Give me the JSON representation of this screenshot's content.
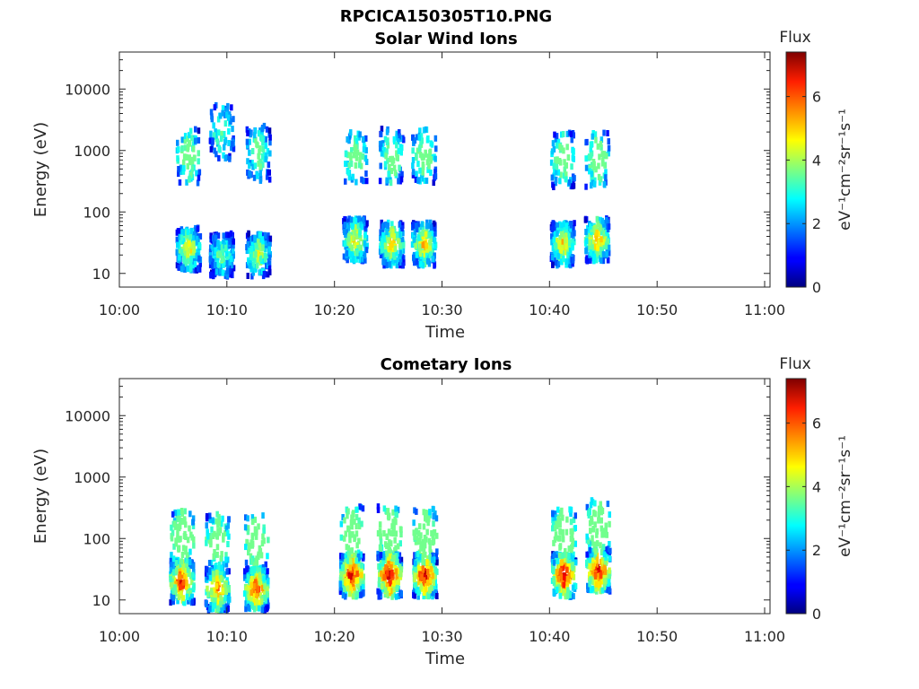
{
  "figure_title": "RPCICA150305T10.PNG",
  "chart_data": [
    {
      "type": "heatmap",
      "title": "Solar Wind Ions",
      "xlabel": "Time",
      "ylabel": "Energy (eV)",
      "x_ticks": [
        "10:00",
        "10:10",
        "10:20",
        "10:30",
        "10:40",
        "10:50",
        "11:00"
      ],
      "x_tick_minutes": [
        0,
        10,
        20,
        30,
        40,
        50,
        60
      ],
      "xlim_minutes": [
        0,
        60.5
      ],
      "y_ticks": [
        10,
        100,
        1000,
        10000
      ],
      "y_tick_labels": [
        "10",
        "100",
        "1000",
        "10000"
      ],
      "ylim": [
        6,
        40000
      ],
      "yscale": "log",
      "colorbar": {
        "title": "Flux",
        "label": "eV⁻¹cm⁻²sr⁻¹s⁻¹",
        "range": [
          0,
          7.4
        ],
        "ticks": [
          0,
          2,
          4,
          6
        ],
        "colormap": "jet"
      },
      "bursts": [
        {
          "center_minute": 6.3,
          "peak_flux": 5.0,
          "low_energy_peak": 25,
          "high_energy_peak": 800
        },
        {
          "center_minute": 9.4,
          "peak_flux": 4.0,
          "low_energy_peak": 20,
          "high_energy_peak": 2000
        },
        {
          "center_minute": 12.8,
          "peak_flux": 4.5,
          "low_energy_peak": 20,
          "high_energy_peak": 900
        },
        {
          "center_minute": 21.8,
          "peak_flux": 5.0,
          "low_energy_peak": 35,
          "high_energy_peak": 800
        },
        {
          "center_minute": 25.2,
          "peak_flux": 5.2,
          "low_energy_peak": 30,
          "high_energy_peak": 800
        },
        {
          "center_minute": 28.2,
          "peak_flux": 5.2,
          "low_energy_peak": 30,
          "high_energy_peak": 800
        },
        {
          "center_minute": 41.1,
          "peak_flux": 5.2,
          "low_energy_peak": 30,
          "high_energy_peak": 700
        },
        {
          "center_minute": 44.3,
          "peak_flux": 5.5,
          "low_energy_peak": 35,
          "high_energy_peak": 700
        }
      ]
    },
    {
      "type": "heatmap",
      "title": "Cometary Ions",
      "xlabel": "Time",
      "ylabel": "Energy (eV)",
      "x_ticks": [
        "10:00",
        "10:10",
        "10:20",
        "10:30",
        "10:40",
        "10:50",
        "11:00"
      ],
      "x_tick_minutes": [
        0,
        10,
        20,
        30,
        40,
        50,
        60
      ],
      "xlim_minutes": [
        0,
        60.5
      ],
      "y_ticks": [
        10,
        100,
        1000,
        10000
      ],
      "y_tick_labels": [
        "10",
        "100",
        "1000",
        "10000"
      ],
      "ylim": [
        6,
        40000
      ],
      "yscale": "log",
      "colorbar": {
        "title": "Flux",
        "label": "eV⁻¹cm⁻²sr⁻¹s⁻¹",
        "range": [
          0,
          7.4
        ],
        "ticks": [
          0,
          2,
          4,
          6
        ],
        "colormap": "jet"
      },
      "bursts": [
        {
          "center_minute": 5.7,
          "peak_flux": 6.8,
          "low_energy_peak": 20,
          "high_energy_peak": 100
        },
        {
          "center_minute": 9.0,
          "peak_flux": 6.0,
          "low_energy_peak": 15,
          "high_energy_peak": 90
        },
        {
          "center_minute": 12.6,
          "peak_flux": 6.5,
          "low_energy_peak": 15,
          "high_energy_peak": 90
        },
        {
          "center_minute": 21.5,
          "peak_flux": 7.0,
          "low_energy_peak": 25,
          "high_energy_peak": 120
        },
        {
          "center_minute": 25.0,
          "peak_flux": 7.3,
          "low_energy_peak": 25,
          "high_energy_peak": 120
        },
        {
          "center_minute": 28.3,
          "peak_flux": 7.0,
          "low_energy_peak": 25,
          "high_energy_peak": 110
        },
        {
          "center_minute": 41.2,
          "peak_flux": 7.2,
          "low_energy_peak": 25,
          "high_energy_peak": 110
        },
        {
          "center_minute": 44.4,
          "peak_flux": 7.0,
          "low_energy_peak": 30,
          "high_energy_peak": 150
        }
      ]
    }
  ]
}
